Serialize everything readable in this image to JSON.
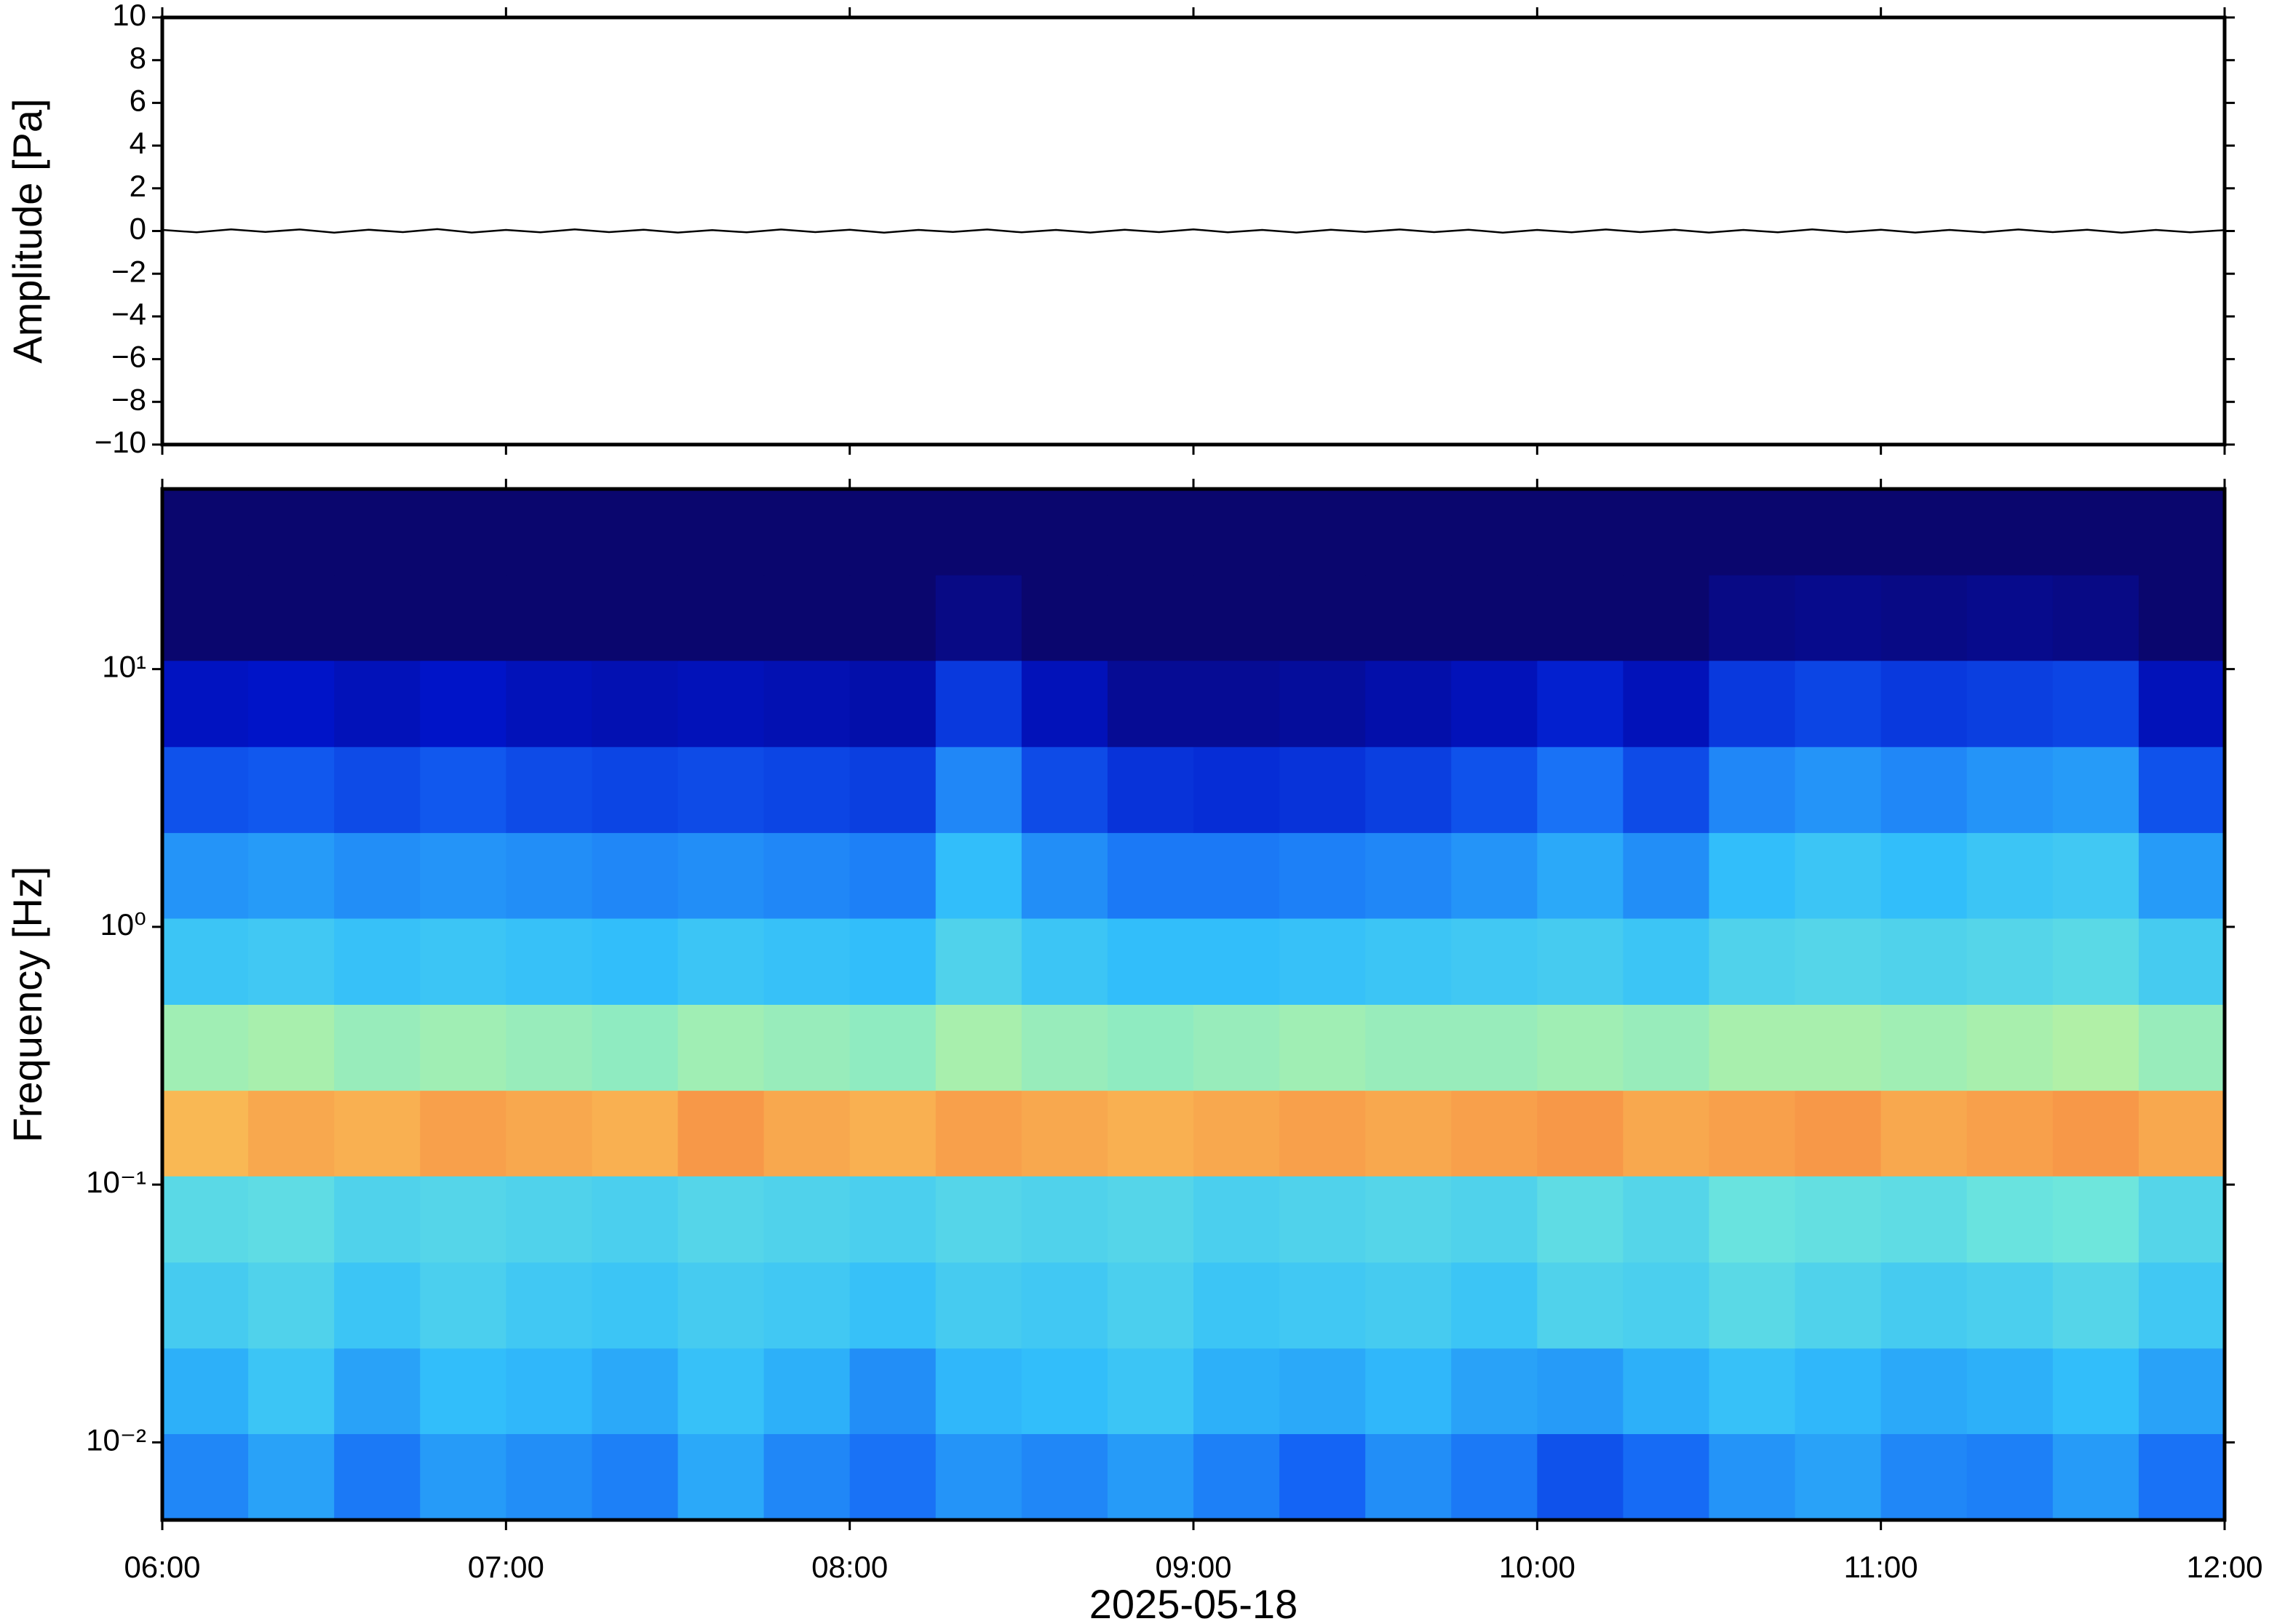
{
  "chart_data": [
    {
      "type": "line",
      "ylabel": "Amplitude [Pa]",
      "xlim": [
        6,
        12
      ],
      "xticks": [
        6,
        7,
        8,
        9,
        10,
        11,
        12
      ],
      "ylim": [
        -10,
        10
      ],
      "yticks": [
        {
          "value": -10,
          "label": "−10"
        },
        {
          "value": -8,
          "label": "−8"
        },
        {
          "value": -6,
          "label": "−6"
        },
        {
          "value": -4,
          "label": "−4"
        },
        {
          "value": -2,
          "label": "−2"
        },
        0,
        2,
        4,
        6,
        8,
        10
      ],
      "x": [
        6.0,
        6.1,
        6.2,
        6.3,
        6.4,
        6.5,
        6.6,
        6.7,
        6.8,
        6.9,
        7.0,
        7.1,
        7.2,
        7.3,
        7.4,
        7.5,
        7.6,
        7.7,
        7.8,
        7.9,
        8.0,
        8.1,
        8.2,
        8.3,
        8.4,
        8.5,
        8.6,
        8.7,
        8.8,
        8.9,
        9.0,
        9.1,
        9.2,
        9.3,
        9.4,
        9.5,
        9.6,
        9.7,
        9.8,
        9.9,
        10.0,
        10.1,
        10.2,
        10.3,
        10.4,
        10.5,
        10.6,
        10.7,
        10.8,
        10.9,
        11.0,
        11.1,
        11.2,
        11.3,
        11.4,
        11.5,
        11.6,
        11.7,
        11.8,
        11.9,
        12.0
      ],
      "series": [
        {
          "color": "#000000",
          "values": [
            0.05,
            -0.06,
            0.08,
            -0.04,
            0.07,
            -0.08,
            0.06,
            -0.05,
            0.09,
            -0.07,
            0.05,
            -0.06,
            0.08,
            -0.05,
            0.06,
            -0.07,
            0.04,
            -0.06,
            0.07,
            -0.05,
            0.06,
            -0.08,
            0.05,
            -0.04,
            0.07,
            -0.06,
            0.05,
            -0.07,
            0.06,
            -0.05,
            0.08,
            -0.06,
            0.05,
            -0.07,
            0.06,
            -0.04,
            0.07,
            -0.05,
            0.06,
            -0.08,
            0.05,
            -0.06,
            0.07,
            -0.05,
            0.06,
            -0.07,
            0.05,
            -0.06,
            0.08,
            -0.05,
            0.06,
            -0.07,
            0.05,
            -0.06,
            0.07,
            -0.05,
            0.06,
            -0.08,
            0.05,
            -0.06,
            0.04
          ]
        }
      ]
    },
    {
      "type": "heatmap",
      "ylabel": "Frequency [Hz]",
      "xlabel": "2025-05-18",
      "ylog": true,
      "colormap": "jet",
      "xlim": [
        6,
        12
      ],
      "xticks": [
        {
          "value": 6,
          "label": "06:00"
        },
        {
          "value": 7,
          "label": "07:00"
        },
        {
          "value": 8,
          "label": "08:00"
        },
        {
          "value": 9,
          "label": "09:00"
        },
        {
          "value": 10,
          "label": "10:00"
        },
        {
          "value": 11,
          "label": "11:00"
        },
        {
          "value": 12,
          "label": "12:00"
        }
      ],
      "ylim": [
        0.005,
        50
      ],
      "yticks": [
        {
          "value": 0.01,
          "label": "10⁻²"
        },
        {
          "value": 0.1,
          "label": "10⁻¹"
        },
        {
          "value": 1,
          "label": "10⁰"
        },
        {
          "value": 10,
          "label": "10¹"
        }
      ],
      "xbins": [
        6,
        6.25,
        6.5,
        6.75,
        7,
        7.25,
        7.5,
        7.75,
        8,
        8.25,
        8.5,
        8.75,
        9,
        9.25,
        9.5,
        9.75,
        10,
        10.25,
        10.5,
        10.75,
        11,
        11.25,
        11.5,
        11.75,
        12
      ],
      "ybins": [
        0.005,
        0.0108,
        0.0232,
        0.05,
        0.108,
        0.232,
        0.5,
        1.08,
        2.32,
        5,
        10.8,
        23.2,
        50
      ],
      "z": [
        [
          0.3,
          0.34,
          0.28,
          0.33,
          0.31,
          0.29,
          0.35,
          0.3,
          0.27,
          0.32,
          0.3,
          0.33,
          0.29,
          0.25,
          0.31,
          0.28,
          0.22,
          0.26,
          0.32,
          0.34,
          0.3,
          0.29,
          0.33,
          0.27
        ],
        [
          0.36,
          0.4,
          0.34,
          0.38,
          0.37,
          0.35,
          0.39,
          0.36,
          0.31,
          0.37,
          0.38,
          0.4,
          0.36,
          0.35,
          0.37,
          0.34,
          0.33,
          0.36,
          0.39,
          0.37,
          0.35,
          0.36,
          0.38,
          0.34
        ],
        [
          0.42,
          0.44,
          0.4,
          0.43,
          0.41,
          0.4,
          0.42,
          0.41,
          0.39,
          0.42,
          0.41,
          0.43,
          0.4,
          0.41,
          0.42,
          0.4,
          0.44,
          0.43,
          0.46,
          0.44,
          0.42,
          0.43,
          0.45,
          0.41
        ],
        [
          0.46,
          0.47,
          0.44,
          0.45,
          0.44,
          0.43,
          0.45,
          0.44,
          0.43,
          0.45,
          0.44,
          0.45,
          0.43,
          0.44,
          0.45,
          0.44,
          0.47,
          0.45,
          0.49,
          0.48,
          0.47,
          0.49,
          0.5,
          0.45
        ],
        [
          0.74,
          0.76,
          0.75,
          0.77,
          0.76,
          0.75,
          0.78,
          0.76,
          0.75,
          0.77,
          0.76,
          0.75,
          0.76,
          0.77,
          0.76,
          0.77,
          0.78,
          0.76,
          0.77,
          0.78,
          0.76,
          0.77,
          0.78,
          0.76
        ],
        [
          0.56,
          0.57,
          0.55,
          0.56,
          0.55,
          0.54,
          0.56,
          0.55,
          0.54,
          0.57,
          0.55,
          0.54,
          0.55,
          0.56,
          0.55,
          0.55,
          0.56,
          0.55,
          0.57,
          0.57,
          0.56,
          0.57,
          0.58,
          0.55
        ],
        [
          0.4,
          0.41,
          0.39,
          0.4,
          0.39,
          0.38,
          0.4,
          0.39,
          0.38,
          0.44,
          0.4,
          0.38,
          0.38,
          0.39,
          0.4,
          0.41,
          0.42,
          0.4,
          0.44,
          0.45,
          0.44,
          0.45,
          0.46,
          0.42
        ],
        [
          0.32,
          0.33,
          0.31,
          0.32,
          0.31,
          0.3,
          0.31,
          0.3,
          0.29,
          0.38,
          0.31,
          0.28,
          0.28,
          0.29,
          0.3,
          0.32,
          0.35,
          0.31,
          0.38,
          0.4,
          0.38,
          0.4,
          0.41,
          0.33
        ],
        [
          0.22,
          0.23,
          0.21,
          0.23,
          0.21,
          0.2,
          0.21,
          0.2,
          0.19,
          0.3,
          0.21,
          0.17,
          0.16,
          0.17,
          0.19,
          0.22,
          0.27,
          0.21,
          0.3,
          0.32,
          0.3,
          0.32,
          0.33,
          0.22
        ],
        [
          0.11,
          0.12,
          0.1,
          0.12,
          0.1,
          0.09,
          0.1,
          0.09,
          0.08,
          0.18,
          0.1,
          0.05,
          0.05,
          0.06,
          0.08,
          0.1,
          0.14,
          0.1,
          0.18,
          0.2,
          0.18,
          0.19,
          0.2,
          0.1
        ],
        [
          0,
          0,
          0,
          0,
          0,
          0,
          0,
          0,
          0,
          0.03,
          0,
          0,
          0,
          0,
          0,
          0,
          0,
          0,
          0.03,
          0.04,
          0.03,
          0.04,
          0.03,
          0
        ],
        [
          0,
          0,
          0,
          0,
          0,
          0,
          0,
          0,
          0,
          0,
          0,
          0,
          0,
          0,
          0,
          0,
          0,
          0,
          0,
          0,
          0,
          0,
          0,
          0
        ]
      ]
    }
  ]
}
